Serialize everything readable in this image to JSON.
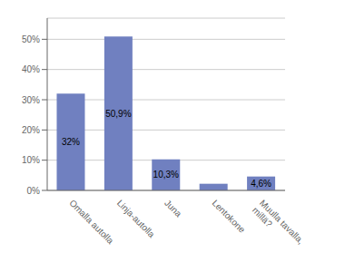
{
  "chart_data": {
    "type": "bar",
    "categories": [
      "Omalla autolla",
      "Linja-autolla",
      "Juna",
      "Lentokone",
      "Muulla tavalla,\nmillä?"
    ],
    "values": [
      32.0,
      50.9,
      10.3,
      2.2,
      4.6
    ],
    "value_labels": [
      "32%",
      "50,9%",
      "10,3%",
      null,
      "4,6%"
    ],
    "data_labels": true,
    "color": "#7080c0",
    "ylim": [
      0,
      57
    ],
    "yticks": [
      {
        "value": 0,
        "label": "0%"
      },
      {
        "value": 10,
        "label": "10%"
      },
      {
        "value": 20,
        "label": "20%"
      },
      {
        "value": 30,
        "label": "30%"
      },
      {
        "value": 40,
        "label": "40%"
      },
      {
        "value": 50,
        "label": "50%"
      }
    ],
    "grid": true
  }
}
